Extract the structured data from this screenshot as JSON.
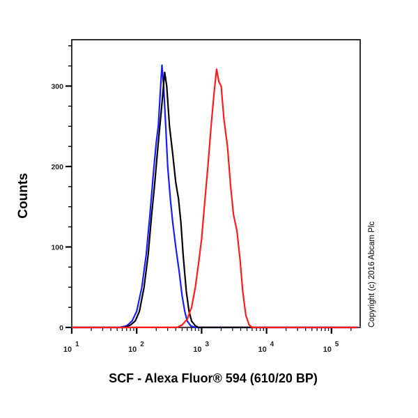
{
  "chart_data": {
    "type": "line",
    "title": "",
    "xlabel": "SCF - Alexa Fluor® 594 (610/20 BP)",
    "ylabel": "Counts",
    "xscale": "log",
    "xlim": [
      5,
      250000
    ],
    "ylim": [
      0,
      360
    ],
    "x_ticks": [
      {
        "base": "10",
        "exp": "1",
        "value": 10
      },
      {
        "base": "10",
        "exp": "2",
        "value": 100
      },
      {
        "base": "10",
        "exp": "3",
        "value": 1000
      },
      {
        "base": "10",
        "exp": "4",
        "value": 10000
      },
      {
        "base": "10",
        "exp": "5",
        "value": 100000
      }
    ],
    "y_ticks": [
      0,
      100,
      200,
      300
    ],
    "grid": false,
    "legend": null,
    "annotation": "Copyright (c) 2016 Abcam Plc",
    "series": [
      {
        "name": "blue",
        "color": "#1a1aff",
        "points": [
          [
            55,
            0
          ],
          [
            70,
            2
          ],
          [
            85,
            8
          ],
          [
            100,
            20
          ],
          [
            120,
            50
          ],
          [
            140,
            90
          ],
          [
            160,
            140
          ],
          [
            180,
            190
          ],
          [
            200,
            230
          ],
          [
            215,
            250
          ],
          [
            230,
            290
          ],
          [
            245,
            326
          ],
          [
            260,
            300
          ],
          [
            280,
            250
          ],
          [
            300,
            200
          ],
          [
            330,
            160
          ],
          [
            360,
            130
          ],
          [
            400,
            100
          ],
          [
            450,
            70
          ],
          [
            500,
            40
          ],
          [
            550,
            20
          ],
          [
            600,
            8
          ],
          [
            680,
            2
          ],
          [
            800,
            0
          ]
        ]
      },
      {
        "name": "black",
        "color": "#000000",
        "points": [
          [
            65,
            0
          ],
          [
            80,
            3
          ],
          [
            95,
            8
          ],
          [
            110,
            20
          ],
          [
            130,
            50
          ],
          [
            150,
            90
          ],
          [
            170,
            140
          ],
          [
            190,
            180
          ],
          [
            210,
            220
          ],
          [
            240,
            270
          ],
          [
            270,
            317
          ],
          [
            290,
            300
          ],
          [
            320,
            250
          ],
          [
            360,
            215
          ],
          [
            400,
            180
          ],
          [
            440,
            160
          ],
          [
            480,
            130
          ],
          [
            520,
            90
          ],
          [
            580,
            45
          ],
          [
            640,
            20
          ],
          [
            700,
            8
          ],
          [
            800,
            2
          ],
          [
            900,
            0
          ]
        ]
      },
      {
        "name": "red",
        "color": "#ff1a1a",
        "points": [
          [
            420,
            0
          ],
          [
            500,
            3
          ],
          [
            600,
            10
          ],
          [
            700,
            25
          ],
          [
            800,
            50
          ],
          [
            900,
            80
          ],
          [
            1000,
            110
          ],
          [
            1100,
            150
          ],
          [
            1250,
            200
          ],
          [
            1400,
            250
          ],
          [
            1550,
            290
          ],
          [
            1700,
            321
          ],
          [
            1850,
            305
          ],
          [
            2000,
            300
          ],
          [
            2200,
            260
          ],
          [
            2500,
            225
          ],
          [
            2800,
            175
          ],
          [
            3100,
            140
          ],
          [
            3500,
            120
          ],
          [
            3900,
            85
          ],
          [
            4300,
            45
          ],
          [
            4800,
            15
          ],
          [
            5400,
            3
          ],
          [
            6000,
            0
          ]
        ]
      }
    ]
  },
  "labels": {
    "ylabel": "Counts",
    "xlabel": "SCF - Alexa Fluor® 594 (610/20 BP)",
    "copyright": "Copyright (c) 2016 Abcam Plc"
  }
}
